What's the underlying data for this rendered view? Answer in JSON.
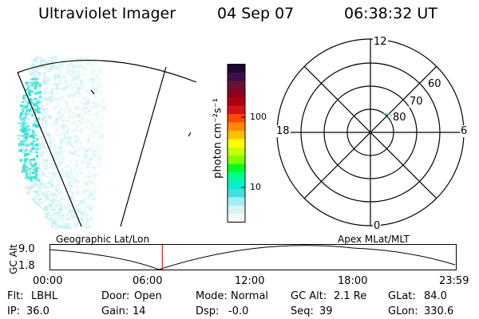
{
  "header": {
    "title": "Ultraviolet Imager",
    "date": "04 Sep 07",
    "time": "06:38:32 UT"
  },
  "colorbar": {
    "unit_label": "photon cm⁻²s⁻¹",
    "ticks": [
      {
        "label": "100",
        "value": 100
      },
      {
        "label": "10",
        "value": 10
      }
    ],
    "colors": [
      "#1a0a2e",
      "#3a0f4a",
      "#6a0f3a",
      "#8a0020",
      "#b00010",
      "#d41414",
      "#ff4a00",
      "#ff8a00",
      "#ffc000",
      "#ffff00",
      "#c8ff00",
      "#80ff00",
      "#00ff20",
      "#00ff90",
      "#00f0d0",
      "#40e0e0",
      "#a0f0f0",
      "#d8f4f4",
      "#f4f8f8"
    ]
  },
  "polar_grid": {
    "label_top": "12",
    "label_left": "18",
    "label_right": "6",
    "label_bottom": "0",
    "lat_labels": [
      "60",
      "70",
      "80"
    ]
  },
  "timeline": {
    "left_title": "Geographic Lat/Lon",
    "right_title": "Apex MLat/MLT",
    "y_axis_label": "GC Alt",
    "y_max_label": "9.0",
    "y_min_label": "1.8",
    "x_ticks": [
      "00:00",
      "06:00",
      "12:00",
      "18:00",
      "23:59"
    ],
    "current_time_hours": 6.64
  },
  "status": {
    "filter_label": "Flt:",
    "filter_value": "LBHL",
    "ip_label": "IP:",
    "ip_value": "36.0",
    "door_label": "Door:",
    "door_value": "Open",
    "gain_label": "Gain:",
    "gain_value": "14",
    "mode_label": "Mode:",
    "mode_value": "Normal",
    "dsp_label": "Dsp:",
    "dsp_value": "-0.0",
    "gcalt_label": "GC Alt:",
    "gcalt_value": "2.1 Re",
    "seq_label": "Seq:",
    "seq_value": "39",
    "glat_label": "GLat:",
    "glat_value": "84.0",
    "glon_label": "GLon:",
    "glon_value": "330.6"
  },
  "colors": {
    "aurora_cyan": "#33e0d6",
    "aurora_light": "#bfeeee",
    "time_marker": "#cc2222"
  }
}
